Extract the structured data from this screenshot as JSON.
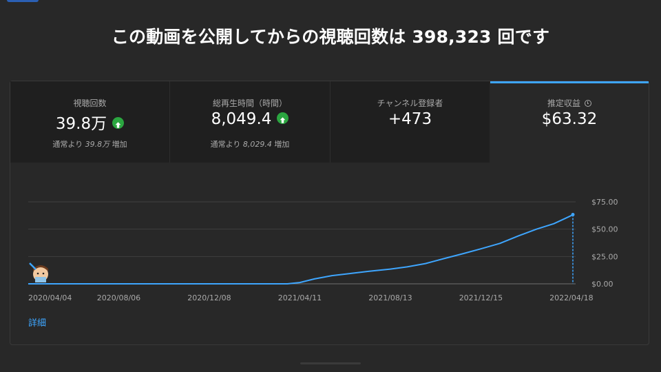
{
  "headline": "この動画を公開してからの視聴回数は 398,323 回です",
  "metrics": [
    {
      "label": "視聴回数",
      "value": "39.8万",
      "trend_icon": "arrow-up-circle-icon",
      "sub_prefix": "通常より ",
      "sub_value": "39.8万",
      "sub_suffix": " 増加"
    },
    {
      "label": "総再生時間（時間）",
      "value": "8,049.4",
      "trend_icon": "arrow-up-circle-icon",
      "sub_prefix": "通常より ",
      "sub_value": "8,029.4",
      "sub_suffix": " 増加"
    },
    {
      "label": "チャンネル登録者",
      "value": "+473"
    },
    {
      "label": "推定収益",
      "value": "$63.32",
      "info_icon": "clock-icon"
    }
  ],
  "details_link": "詳細",
  "colors": {
    "line": "#3ea6ff",
    "positive": "#2ba640",
    "accent": "#3ea6ff"
  },
  "chart_data": {
    "type": "line",
    "series": [
      {
        "points": [
          [
            "2020/04/04",
            0
          ],
          [
            "2021/03/25",
            0
          ],
          [
            "2021/04/11",
            1.2
          ],
          [
            "2021/05/01",
            4.5
          ],
          [
            "2021/05/25",
            7.5
          ],
          [
            "2021/06/20",
            9.5
          ],
          [
            "2021/07/15",
            11.5
          ],
          [
            "2021/08/13",
            13.5
          ],
          [
            "2021/09/05",
            15.5
          ],
          [
            "2021/09/30",
            18.5
          ],
          [
            "2021/10/25",
            23.0
          ],
          [
            "2021/11/20",
            27.5
          ],
          [
            "2021/12/15",
            32.0
          ],
          [
            "2022/01/10",
            37.0
          ],
          [
            "2022/02/05",
            44.0
          ],
          [
            "2022/03/01",
            50.0
          ],
          [
            "2022/03/25",
            55.0
          ],
          [
            "2022/04/10",
            60.0
          ],
          [
            "2022/04/18",
            62.5
          ],
          [
            "2022/04/20",
            63.32
          ]
        ]
      }
    ],
    "x_ticks": [
      "2020/04/04",
      "2020/08/06",
      "2020/12/08",
      "2021/04/11",
      "2021/08/13",
      "2021/12/15",
      "2022/04/18"
    ],
    "y_ticks": [
      "$0.00",
      "$25.00",
      "$50.00",
      "$75.00"
    ],
    "ylim": [
      0,
      75
    ],
    "xlim": [
      "2020/04/04",
      "2022/04/20"
    ],
    "grid": true,
    "y_axis_position": "right"
  }
}
